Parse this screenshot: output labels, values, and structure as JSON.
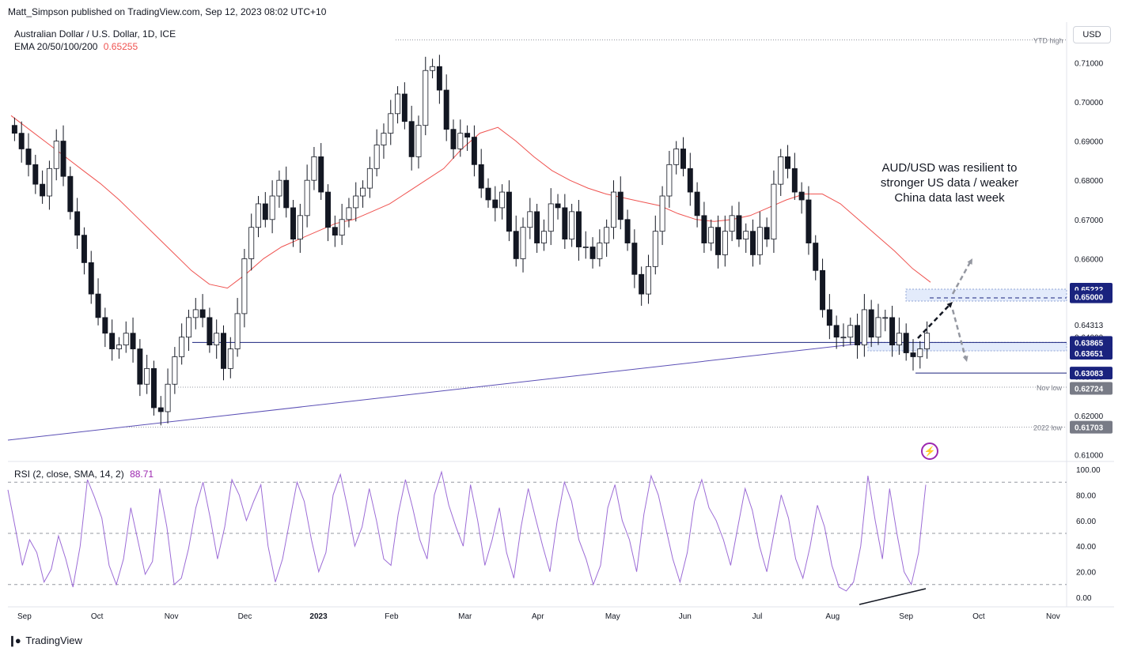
{
  "header": {
    "published": "Matt_Simpson published on TradingView.com, Sep 12, 2023 08:02 UTC+10",
    "symbol": "Australian Dollar / U.S. Dollar, 1D, ICE",
    "ema_label": "EMA 20/50/100/200",
    "ema_value": "0.65255",
    "rsi_label": "RSI (2, close, SMA, 14, 2)",
    "rsi_value": "88.71"
  },
  "toolbar": {
    "currency": "USD"
  },
  "annotation": [
    "AUD/USD was resilient to",
    "stronger US data / weaker",
    "China data last week"
  ],
  "footer": {
    "brand": "TradingView"
  },
  "colors": {
    "up": "#131722",
    "ema": "#ef5350",
    "rsi": "#9c6cd6",
    "trend": "#5b4fb5",
    "level": "#1a237e",
    "zone": "#e3ebfb"
  },
  "chart_data": [
    {
      "type": "candlestick",
      "title": "Australian Dollar / U.S. Dollar, 1D, ICE",
      "y_ticks": [
        "0.71000",
        "0.70000",
        "0.69000",
        "0.68000",
        "0.67000",
        "0.66000",
        "0.65000",
        "0.64000",
        "0.63000",
        "0.62000",
        "0.61000"
      ],
      "ylim": [
        0.6085,
        0.7155
      ],
      "x_ticks": [
        "Sep",
        "Oct",
        "Nov",
        "Dec",
        "2023",
        "Feb",
        "Mar",
        "Apr",
        "May",
        "Jun",
        "Jul",
        "Aug",
        "Sep",
        "Oct",
        "Nov"
      ],
      "closes": [
        0.692,
        0.688,
        0.684,
        0.679,
        0.676,
        0.683,
        0.69,
        0.681,
        0.672,
        0.666,
        0.659,
        0.651,
        0.645,
        0.641,
        0.637,
        0.638,
        0.641,
        0.637,
        0.628,
        0.632,
        0.622,
        0.621,
        0.628,
        0.635,
        0.64,
        0.645,
        0.647,
        0.645,
        0.638,
        0.641,
        0.632,
        0.637,
        0.646,
        0.66,
        0.668,
        0.674,
        0.67,
        0.676,
        0.68,
        0.673,
        0.665,
        0.671,
        0.68,
        0.686,
        0.677,
        0.668,
        0.666,
        0.67,
        0.673,
        0.676,
        0.678,
        0.683,
        0.689,
        0.692,
        0.697,
        0.702,
        0.695,
        0.686,
        0.694,
        0.708,
        0.709,
        0.703,
        0.693,
        0.688,
        0.692,
        0.691,
        0.684,
        0.678,
        0.675,
        0.673,
        0.677,
        0.667,
        0.66,
        0.668,
        0.672,
        0.664,
        0.667,
        0.674,
        0.673,
        0.665,
        0.672,
        0.663,
        0.663,
        0.66,
        0.664,
        0.668,
        0.677,
        0.67,
        0.664,
        0.656,
        0.651,
        0.658,
        0.667,
        0.676,
        0.684,
        0.688,
        0.683,
        0.677,
        0.671,
        0.664,
        0.668,
        0.661,
        0.667,
        0.671,
        0.665,
        0.667,
        0.661,
        0.668,
        0.665,
        0.679,
        0.686,
        0.683,
        0.677,
        0.675,
        0.664,
        0.657,
        0.647,
        0.643,
        0.64,
        0.64,
        0.643,
        0.638,
        0.647,
        0.64,
        0.645,
        0.645,
        0.638,
        0.641,
        0.636,
        0.635,
        0.637,
        0.641
      ],
      "candles_start": "2022-09-01",
      "ema_values": [
        0.6965,
        0.693,
        0.6895,
        0.686,
        0.6825,
        0.679,
        0.675,
        0.6705,
        0.666,
        0.6615,
        0.657,
        0.6535,
        0.6525,
        0.656,
        0.66,
        0.663,
        0.665,
        0.667,
        0.669,
        0.67,
        0.672,
        0.674,
        0.677,
        0.68,
        0.683,
        0.688,
        0.692,
        0.6935,
        0.69,
        0.686,
        0.6825,
        0.68,
        0.678,
        0.6765,
        0.6755,
        0.6745,
        0.6735,
        0.6715,
        0.67,
        0.6695,
        0.67,
        0.671,
        0.673,
        0.675,
        0.6765,
        0.6765,
        0.674,
        0.67,
        0.666,
        0.662,
        0.6575,
        0.654
      ],
      "levels": {
        "ytd_high": 0.7158,
        "res_top": 0.65222,
        "res": 0.65,
        "last": 0.64313,
        "sup_top": 0.63865,
        "sup": 0.63651,
        "s2": 0.63083,
        "nov_low": 0.62724,
        "low_2022": 0.61703
      },
      "level_labels": {
        "0.65222": "0.65222",
        "0.65000": "0.65000",
        "0.64313": "0.64313",
        "0.63865": "0.63865",
        "0.63651": "0.63651",
        "0.63083": "0.63083",
        "0.62724": "0.62724",
        "0.61703": "0.61703",
        "ytd": "YTD high",
        "nov": "Nov low",
        "y2022": "2022 low"
      }
    },
    {
      "type": "line",
      "title": "RSI (2, close, SMA, 14, 2)",
      "ylim": [
        0,
        100
      ],
      "y_ticks": [
        "100.00",
        "80.00",
        "60.00",
        "40.00",
        "20.00",
        "0.00"
      ],
      "bands": [
        90,
        50,
        10
      ],
      "values": [
        84,
        55,
        25,
        45,
        35,
        12,
        22,
        48,
        30,
        8,
        40,
        92,
        78,
        62,
        25,
        10,
        30,
        70,
        44,
        18,
        28,
        85,
        55,
        10,
        15,
        38,
        70,
        90,
        62,
        30,
        55,
        92,
        80,
        60,
        75,
        88,
        40,
        12,
        30,
        60,
        90,
        75,
        45,
        20,
        35,
        80,
        96,
        70,
        40,
        55,
        85,
        60,
        30,
        25,
        65,
        92,
        70,
        45,
        30,
        80,
        98,
        72,
        55,
        40,
        88,
        60,
        25,
        45,
        70,
        35,
        15,
        55,
        85,
        62,
        40,
        20,
        60,
        90,
        75,
        45,
        30,
        10,
        25,
        70,
        88,
        60,
        45,
        20,
        65,
        95,
        80,
        55,
        30,
        12,
        35,
        75,
        92,
        70,
        60,
        45,
        25,
        55,
        85,
        68,
        40,
        20,
        50,
        80,
        62,
        30,
        15,
        40,
        72,
        55,
        25,
        8,
        5,
        12,
        40,
        95,
        60,
        30,
        85,
        50,
        20,
        10,
        35,
        88
      ]
    }
  ]
}
